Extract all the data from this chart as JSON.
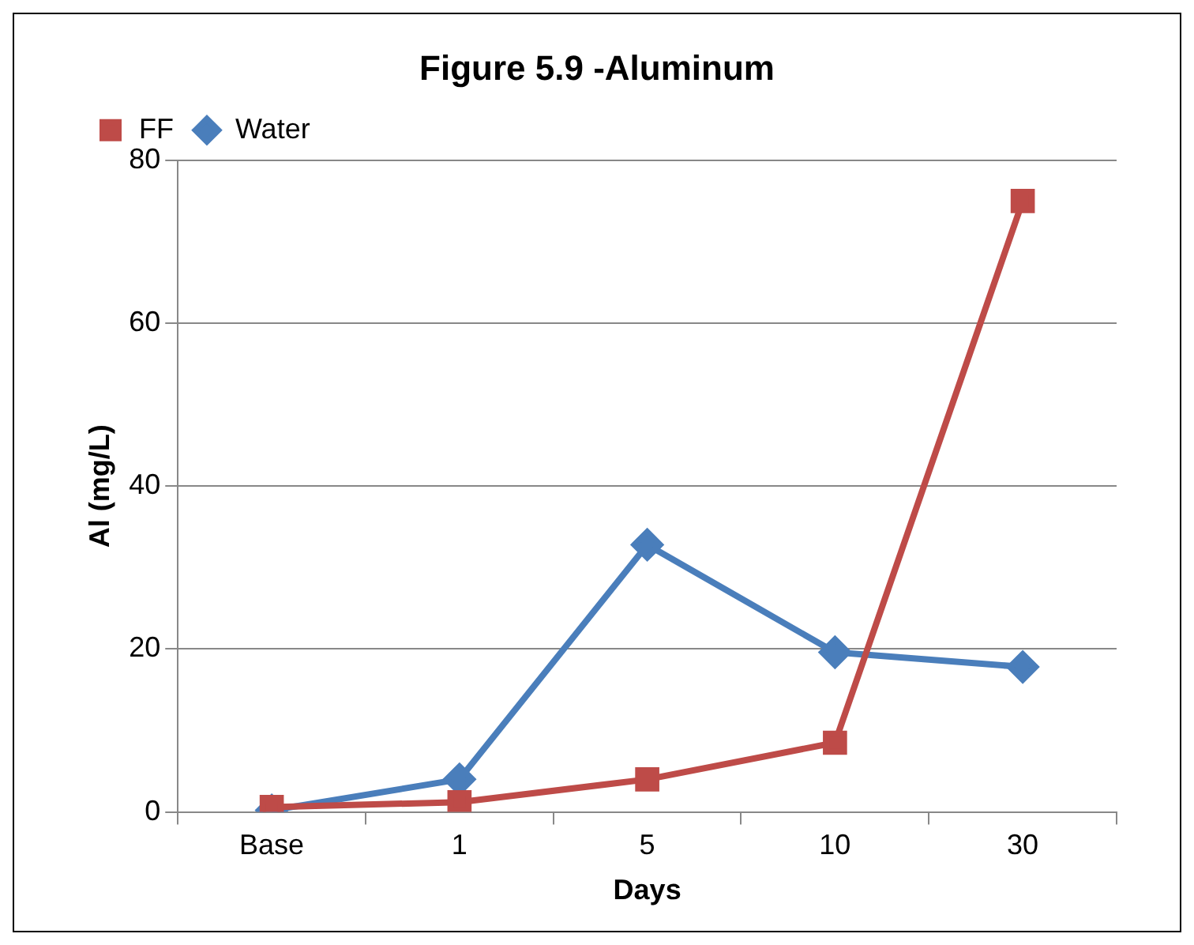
{
  "chart_data": {
    "type": "line",
    "title": "Figure 5.9 -Aluminum",
    "xlabel": "Days",
    "ylabel": "Al (mg/L)",
    "categories": [
      "Base",
      "1",
      "5",
      "10",
      "30"
    ],
    "series": [
      {
        "name": "Water",
        "color": "#4a7ebb",
        "marker": "diamond",
        "values": [
          0.2,
          4,
          32.8,
          19.6,
          17.8
        ]
      },
      {
        "name": "FF",
        "color": "#be4b48",
        "marker": "square",
        "values": [
          0.6,
          1.2,
          4,
          8.5,
          75
        ]
      }
    ],
    "ylim": [
      0,
      80
    ],
    "yticks": [
      0,
      20,
      40,
      60,
      80
    ],
    "grid": "y",
    "legend": "top left"
  }
}
